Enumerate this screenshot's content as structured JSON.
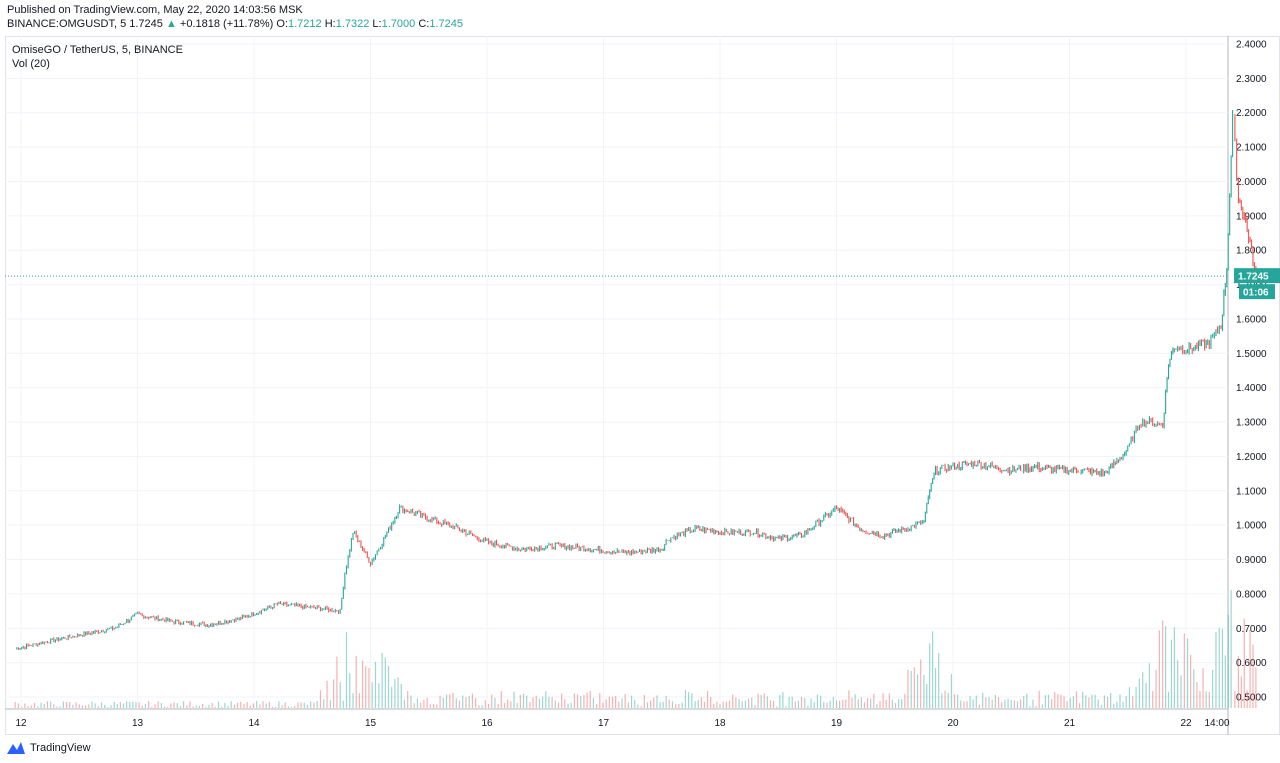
{
  "header": {
    "published": "Published on TradingView.com, May 22, 2020 14:03:56 MSK",
    "symbol": "BINANCE:OMGUSDT, 5",
    "last": "1.7245",
    "arrow": "▲",
    "change": "+0.1818 (+11.78%)",
    "o_label": "O:",
    "o_value": "1.7212",
    "h_label": "H:",
    "h_value": "1.7322",
    "l_label": "L:",
    "l_value": "1.7000",
    "c_label": "C:",
    "c_value": "1.7245"
  },
  "legend": {
    "title": "OmiseGO / TetherUS, 5, BINANCE",
    "volume": "Vol (20)"
  },
  "price_badge": {
    "price": "1.7245",
    "countdown": "01:06"
  },
  "footer": {
    "logo_text": "TradingView",
    "logo_icon": "tradingview-logo-icon"
  },
  "colors": {
    "up": "#26a69a",
    "down": "#ef5350",
    "grid": "#f0f3fa",
    "last_line": "#26a69a"
  },
  "chart_data": {
    "type": "line",
    "title": "OmiseGO / TetherUS, 5, BINANCE",
    "xlabel": "",
    "ylabel": "",
    "ylim": [
      0.46,
      2.4
    ],
    "grid": true,
    "y_ticks": [
      "2.4000",
      "2.3000",
      "2.2000",
      "2.1000",
      "2.0000",
      "1.9000",
      "1.8000",
      "1.7000",
      "1.6000",
      "1.5000",
      "1.4000",
      "1.3000",
      "1.2000",
      "1.1000",
      "1.0000",
      "0.9000",
      "0.8000",
      "0.7000",
      "0.6000",
      "0.5000"
    ],
    "x_ticks": [
      "12",
      "13",
      "14",
      "15",
      "16",
      "17",
      "18",
      "19",
      "20",
      "21",
      "22",
      "14:00"
    ],
    "series": [
      {
        "values_x_day": [
          11.95,
          12.2,
          12.5,
          12.8,
          13.0,
          13.3,
          13.6,
          13.9,
          14.2,
          14.5,
          14.74,
          14.78,
          14.85,
          15.0,
          15.1,
          15.25,
          15.5,
          15.75,
          16.0,
          16.3,
          16.6,
          16.9,
          17.2,
          17.5,
          17.55,
          17.8,
          18.0,
          18.3,
          18.5,
          18.7,
          18.85,
          19.0,
          19.2,
          19.4,
          19.6,
          19.75,
          19.8,
          19.85,
          20.0,
          20.2,
          20.5,
          20.7,
          20.9,
          21.1,
          21.3,
          21.5,
          21.6,
          21.7,
          21.8,
          21.85,
          21.9,
          22.0,
          22.2,
          22.3,
          22.35,
          22.4,
          22.42,
          22.45,
          22.5,
          22.55,
          22.6
        ],
        "values": [
          0.64,
          0.66,
          0.68,
          0.7,
          0.74,
          0.72,
          0.71,
          0.73,
          0.77,
          0.76,
          0.75,
          0.86,
          0.98,
          0.89,
          0.95,
          1.05,
          1.02,
          0.99,
          0.95,
          0.93,
          0.94,
          0.93,
          0.92,
          0.93,
          0.96,
          0.99,
          0.98,
          0.98,
          0.96,
          0.97,
          1.01,
          1.05,
          0.99,
          0.97,
          0.99,
          1.01,
          1.1,
          1.16,
          1.17,
          1.18,
          1.16,
          1.17,
          1.16,
          1.16,
          1.15,
          1.22,
          1.3,
          1.3,
          1.29,
          1.47,
          1.52,
          1.51,
          1.53,
          1.58,
          1.75,
          2.18,
          2.1,
          1.95,
          1.9,
          1.82,
          1.72
        ]
      }
    ],
    "volume_peaks_x_day": [
      14.78,
      15.1,
      19.8,
      21.85,
      22.4
    ],
    "volume_peaks": [
      0.7,
      0.65,
      0.82,
      0.83,
      0.95
    ],
    "last_price": 1.7245
  }
}
